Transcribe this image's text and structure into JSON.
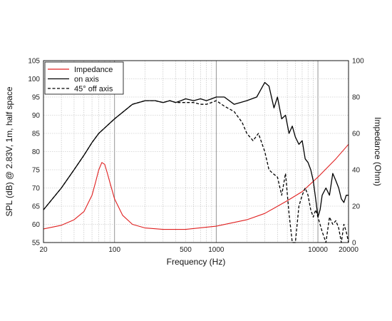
{
  "chart_data": {
    "type": "line",
    "title": "",
    "xlabel": "Frequency (Hz)",
    "ylabel_left": "SPL (dB) @ 2.83V, 1m, half space",
    "ylabel_right": "Impedance (Ohm)",
    "x_scale": "log",
    "xlim": [
      20,
      20000
    ],
    "ylim_left": [
      55,
      105
    ],
    "ylim_right": [
      0,
      100
    ],
    "grid": true,
    "legend_position": "top-left",
    "x_tick_labels": [
      {
        "value": 20,
        "label": "20"
      },
      {
        "value": 100,
        "label": "100"
      },
      {
        "value": 500,
        "label": "500"
      },
      {
        "value": 1000,
        "label": "1000"
      },
      {
        "value": 10000,
        "label": "10000"
      },
      {
        "value": 20000,
        "label": "20000"
      }
    ],
    "y_left_ticks": [
      55,
      60,
      65,
      70,
      75,
      80,
      85,
      90,
      95,
      100,
      105
    ],
    "y_right_ticks": [
      0,
      20,
      40,
      60,
      80,
      100
    ],
    "series": [
      {
        "name": "Impedance",
        "color": "#e02020",
        "dash": "solid",
        "axis": "right",
        "x": [
          20,
          30,
          40,
          50,
          60,
          65,
          70,
          75,
          80,
          85,
          90,
          100,
          120,
          150,
          200,
          300,
          500,
          1000,
          2000,
          3000,
          5000,
          7000,
          10000,
          15000,
          20000
        ],
        "y": [
          7.5,
          9.5,
          12.5,
          17,
          26,
          33,
          40,
          44,
          43,
          38,
          33,
          24,
          15,
          10,
          8,
          7.2,
          7.2,
          9,
          12.5,
          16,
          23,
          28,
          36,
          46,
          54
        ]
      },
      {
        "name": "on axis",
        "color": "#000000",
        "dash": "solid",
        "axis": "left",
        "x": [
          20,
          30,
          40,
          50,
          60,
          70,
          80,
          100,
          150,
          200,
          250,
          300,
          350,
          400,
          450,
          500,
          600,
          700,
          800,
          900,
          1000,
          1200,
          1500,
          2000,
          2500,
          3000,
          3300,
          3700,
          4000,
          4400,
          4800,
          5200,
          5600,
          6000,
          6500,
          7000,
          7500,
          8000,
          8500,
          9000,
          9500,
          10000,
          10500,
          11000,
          12000,
          13000,
          14000,
          15000,
          16000,
          17000,
          18000,
          19000,
          20000
        ],
        "y": [
          64,
          70,
          75,
          79,
          82.5,
          85,
          86.5,
          89,
          93,
          94,
          94,
          93.5,
          94,
          93.5,
          94,
          94.5,
          94,
          94.5,
          94,
          94.5,
          95,
          95,
          93,
          94,
          95,
          99,
          98,
          92,
          95,
          89,
          90,
          85,
          87,
          84,
          82,
          83,
          78,
          77,
          75,
          72,
          67,
          62,
          64,
          68,
          70,
          68,
          74,
          72,
          70,
          67,
          66,
          68,
          68
        ]
      },
      {
        "name": "45° off axis",
        "color": "#000000",
        "dash": "dashed",
        "axis": "left",
        "x": [
          20,
          30,
          40,
          50,
          60,
          70,
          80,
          100,
          150,
          200,
          250,
          300,
          350,
          400,
          450,
          500,
          600,
          700,
          800,
          900,
          1000,
          1200,
          1500,
          1800,
          2000,
          2300,
          2600,
          3000,
          3300,
          3600,
          4000,
          4400,
          4800,
          5200,
          5600,
          6000,
          6500,
          7000,
          7500,
          8000,
          8500,
          9000,
          9500,
          10000,
          11000,
          12000,
          13000,
          14000,
          15000,
          16000,
          17000,
          18000,
          19000,
          20000
        ],
        "y": [
          64,
          70,
          75,
          79,
          82.5,
          85,
          86.5,
          89,
          93,
          94,
          94,
          93.5,
          94,
          93.5,
          93.5,
          93.5,
          93.5,
          93,
          93,
          93.5,
          94,
          92.5,
          91,
          88,
          85,
          83,
          85,
          80,
          75,
          74,
          73,
          68,
          74,
          63,
          55,
          55,
          65,
          68,
          70,
          68,
          64,
          62,
          64,
          62,
          58,
          55,
          62,
          60,
          61,
          59,
          55,
          60,
          58,
          55
        ]
      }
    ]
  }
}
